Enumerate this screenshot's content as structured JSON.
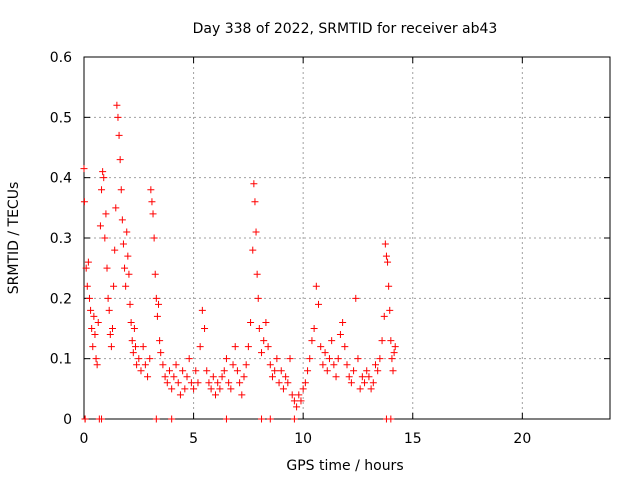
{
  "chart_data": {
    "type": "scatter",
    "title": "Day 338 of 2022, SRMTID for receiver ab43",
    "xlabel": "GPS time / hours",
    "ylabel": "SRMTID / TECUs",
    "xlim": [
      0,
      24
    ],
    "ylim": [
      0,
      0.6
    ],
    "x_ticks": [
      0,
      5,
      10,
      15,
      20
    ],
    "x_tick_labels": [
      "0",
      "5",
      "10",
      "15",
      "20"
    ],
    "y_ticks": [
      0,
      0.1,
      0.2,
      0.3,
      0.4,
      0.5,
      0.6
    ],
    "y_tick_labels": [
      "0",
      "0.1",
      "0.2",
      "0.3",
      "0.4",
      "0.5",
      "0.6"
    ],
    "grid": true,
    "marker": "plus",
    "color": "#ff0000",
    "series": [
      {
        "name": "SRMTID",
        "points": [
          [
            0.0,
            0.415
          ],
          [
            0.02,
            0.36
          ],
          [
            0.05,
            0.0
          ],
          [
            0.1,
            0.25
          ],
          [
            0.15,
            0.22
          ],
          [
            0.2,
            0.26
          ],
          [
            0.25,
            0.2
          ],
          [
            0.3,
            0.18
          ],
          [
            0.35,
            0.15
          ],
          [
            0.4,
            0.12
          ],
          [
            0.45,
            0.17
          ],
          [
            0.5,
            0.14
          ],
          [
            0.55,
            0.1
          ],
          [
            0.6,
            0.09
          ],
          [
            0.65,
            0.16
          ],
          [
            0.7,
            0.0
          ],
          [
            0.75,
            0.32
          ],
          [
            0.8,
            0.38
          ],
          [
            0.85,
            0.41
          ],
          [
            0.9,
            0.4
          ],
          [
            0.95,
            0.3
          ],
          [
            1.0,
            0.34
          ],
          [
            1.05,
            0.25
          ],
          [
            1.1,
            0.2
          ],
          [
            1.15,
            0.18
          ],
          [
            1.2,
            0.14
          ],
          [
            1.25,
            0.12
          ],
          [
            1.3,
            0.15
          ],
          [
            1.35,
            0.22
          ],
          [
            1.4,
            0.28
          ],
          [
            1.45,
            0.35
          ],
          [
            1.5,
            0.52
          ],
          [
            1.55,
            0.5
          ],
          [
            1.6,
            0.47
          ],
          [
            1.65,
            0.43
          ],
          [
            1.7,
            0.38
          ],
          [
            1.75,
            0.33
          ],
          [
            1.8,
            0.29
          ],
          [
            1.85,
            0.25
          ],
          [
            1.9,
            0.22
          ],
          [
            1.95,
            0.31
          ],
          [
            2.0,
            0.27
          ],
          [
            2.05,
            0.24
          ],
          [
            2.1,
            0.19
          ],
          [
            2.15,
            0.16
          ],
          [
            2.2,
            0.13
          ],
          [
            2.25,
            0.11
          ],
          [
            2.3,
            0.15
          ],
          [
            2.35,
            0.12
          ],
          [
            2.4,
            0.09
          ],
          [
            2.5,
            0.1
          ],
          [
            2.6,
            0.08
          ],
          [
            2.7,
            0.12
          ],
          [
            2.8,
            0.09
          ],
          [
            2.9,
            0.07
          ],
          [
            3.0,
            0.1
          ],
          [
            3.05,
            0.38
          ],
          [
            3.1,
            0.36
          ],
          [
            3.15,
            0.34
          ],
          [
            3.2,
            0.3
          ],
          [
            3.25,
            0.24
          ],
          [
            3.3,
            0.2
          ],
          [
            3.35,
            0.17
          ],
          [
            3.4,
            0.19
          ],
          [
            3.45,
            0.13
          ],
          [
            3.5,
            0.11
          ],
          [
            3.6,
            0.09
          ],
          [
            3.7,
            0.07
          ],
          [
            3.8,
            0.06
          ],
          [
            3.9,
            0.08
          ],
          [
            4.0,
            0.05
          ],
          [
            4.1,
            0.07
          ],
          [
            4.2,
            0.09
          ],
          [
            4.3,
            0.06
          ],
          [
            4.4,
            0.04
          ],
          [
            4.5,
            0.08
          ],
          [
            4.6,
            0.05
          ],
          [
            4.7,
            0.07
          ],
          [
            4.8,
            0.1
          ],
          [
            4.9,
            0.06
          ],
          [
            5.0,
            0.05
          ],
          [
            5.1,
            0.08
          ],
          [
            5.2,
            0.06
          ],
          [
            5.3,
            0.12
          ],
          [
            5.4,
            0.18
          ],
          [
            5.5,
            0.15
          ],
          [
            5.6,
            0.08
          ],
          [
            5.7,
            0.06
          ],
          [
            5.8,
            0.05
          ],
          [
            5.9,
            0.07
          ],
          [
            6.0,
            0.04
          ],
          [
            6.1,
            0.06
          ],
          [
            6.2,
            0.05
          ],
          [
            6.3,
            0.07
          ],
          [
            6.4,
            0.08
          ],
          [
            6.5,
            0.1
          ],
          [
            6.6,
            0.06
          ],
          [
            6.7,
            0.05
          ],
          [
            6.8,
            0.09
          ],
          [
            6.9,
            0.12
          ],
          [
            7.0,
            0.08
          ],
          [
            7.1,
            0.06
          ],
          [
            7.2,
            0.04
          ],
          [
            7.3,
            0.07
          ],
          [
            7.4,
            0.09
          ],
          [
            7.5,
            0.12
          ],
          [
            7.6,
            0.16
          ],
          [
            7.7,
            0.28
          ],
          [
            7.75,
            0.39
          ],
          [
            7.8,
            0.36
          ],
          [
            7.85,
            0.31
          ],
          [
            7.9,
            0.24
          ],
          [
            7.95,
            0.2
          ],
          [
            8.0,
            0.15
          ],
          [
            8.1,
            0.11
          ],
          [
            8.2,
            0.13
          ],
          [
            8.3,
            0.16
          ],
          [
            8.4,
            0.12
          ],
          [
            8.5,
            0.09
          ],
          [
            8.6,
            0.07
          ],
          [
            8.7,
            0.08
          ],
          [
            8.8,
            0.1
          ],
          [
            8.9,
            0.06
          ],
          [
            9.0,
            0.08
          ],
          [
            9.1,
            0.05
          ],
          [
            9.2,
            0.07
          ],
          [
            9.3,
            0.06
          ],
          [
            9.4,
            0.1
          ],
          [
            9.5,
            0.04
          ],
          [
            9.6,
            0.03
          ],
          [
            9.7,
            0.02
          ],
          [
            9.8,
            0.04
          ],
          [
            9.9,
            0.03
          ],
          [
            10.0,
            0.05
          ],
          [
            10.1,
            0.06
          ],
          [
            10.2,
            0.08
          ],
          [
            10.3,
            0.1
          ],
          [
            10.4,
            0.13
          ],
          [
            10.5,
            0.15
          ],
          [
            10.6,
            0.22
          ],
          [
            10.7,
            0.19
          ],
          [
            10.8,
            0.12
          ],
          [
            10.9,
            0.09
          ],
          [
            11.0,
            0.11
          ],
          [
            11.1,
            0.08
          ],
          [
            11.2,
            0.1
          ],
          [
            11.3,
            0.13
          ],
          [
            11.4,
            0.09
          ],
          [
            11.5,
            0.07
          ],
          [
            11.6,
            0.1
          ],
          [
            11.7,
            0.14
          ],
          [
            11.8,
            0.16
          ],
          [
            11.9,
            0.12
          ],
          [
            12.0,
            0.09
          ],
          [
            12.1,
            0.07
          ],
          [
            12.2,
            0.06
          ],
          [
            12.3,
            0.08
          ],
          [
            12.4,
            0.2
          ],
          [
            12.5,
            0.1
          ],
          [
            12.6,
            0.05
          ],
          [
            12.7,
            0.07
          ],
          [
            12.8,
            0.06
          ],
          [
            12.9,
            0.08
          ],
          [
            13.0,
            0.07
          ],
          [
            13.1,
            0.05
          ],
          [
            13.2,
            0.06
          ],
          [
            13.3,
            0.09
          ],
          [
            13.4,
            0.08
          ],
          [
            13.5,
            0.1
          ],
          [
            13.6,
            0.13
          ],
          [
            13.7,
            0.17
          ],
          [
            13.75,
            0.29
          ],
          [
            13.8,
            0.27
          ],
          [
            13.85,
            0.26
          ],
          [
            13.9,
            0.22
          ],
          [
            13.95,
            0.18
          ],
          [
            14.0,
            0.13
          ],
          [
            14.05,
            0.1
          ],
          [
            14.1,
            0.08
          ],
          [
            14.15,
            0.11
          ],
          [
            14.2,
            0.12
          ],
          [
            0.05,
            0.0
          ],
          [
            0.8,
            0.0
          ],
          [
            3.3,
            0.0
          ],
          [
            4.0,
            0.0
          ],
          [
            6.5,
            0.0
          ],
          [
            8.1,
            0.0
          ],
          [
            8.5,
            0.0
          ],
          [
            9.6,
            0.0
          ],
          [
            13.8,
            0.0
          ],
          [
            14.0,
            0.0
          ]
        ]
      }
    ]
  }
}
